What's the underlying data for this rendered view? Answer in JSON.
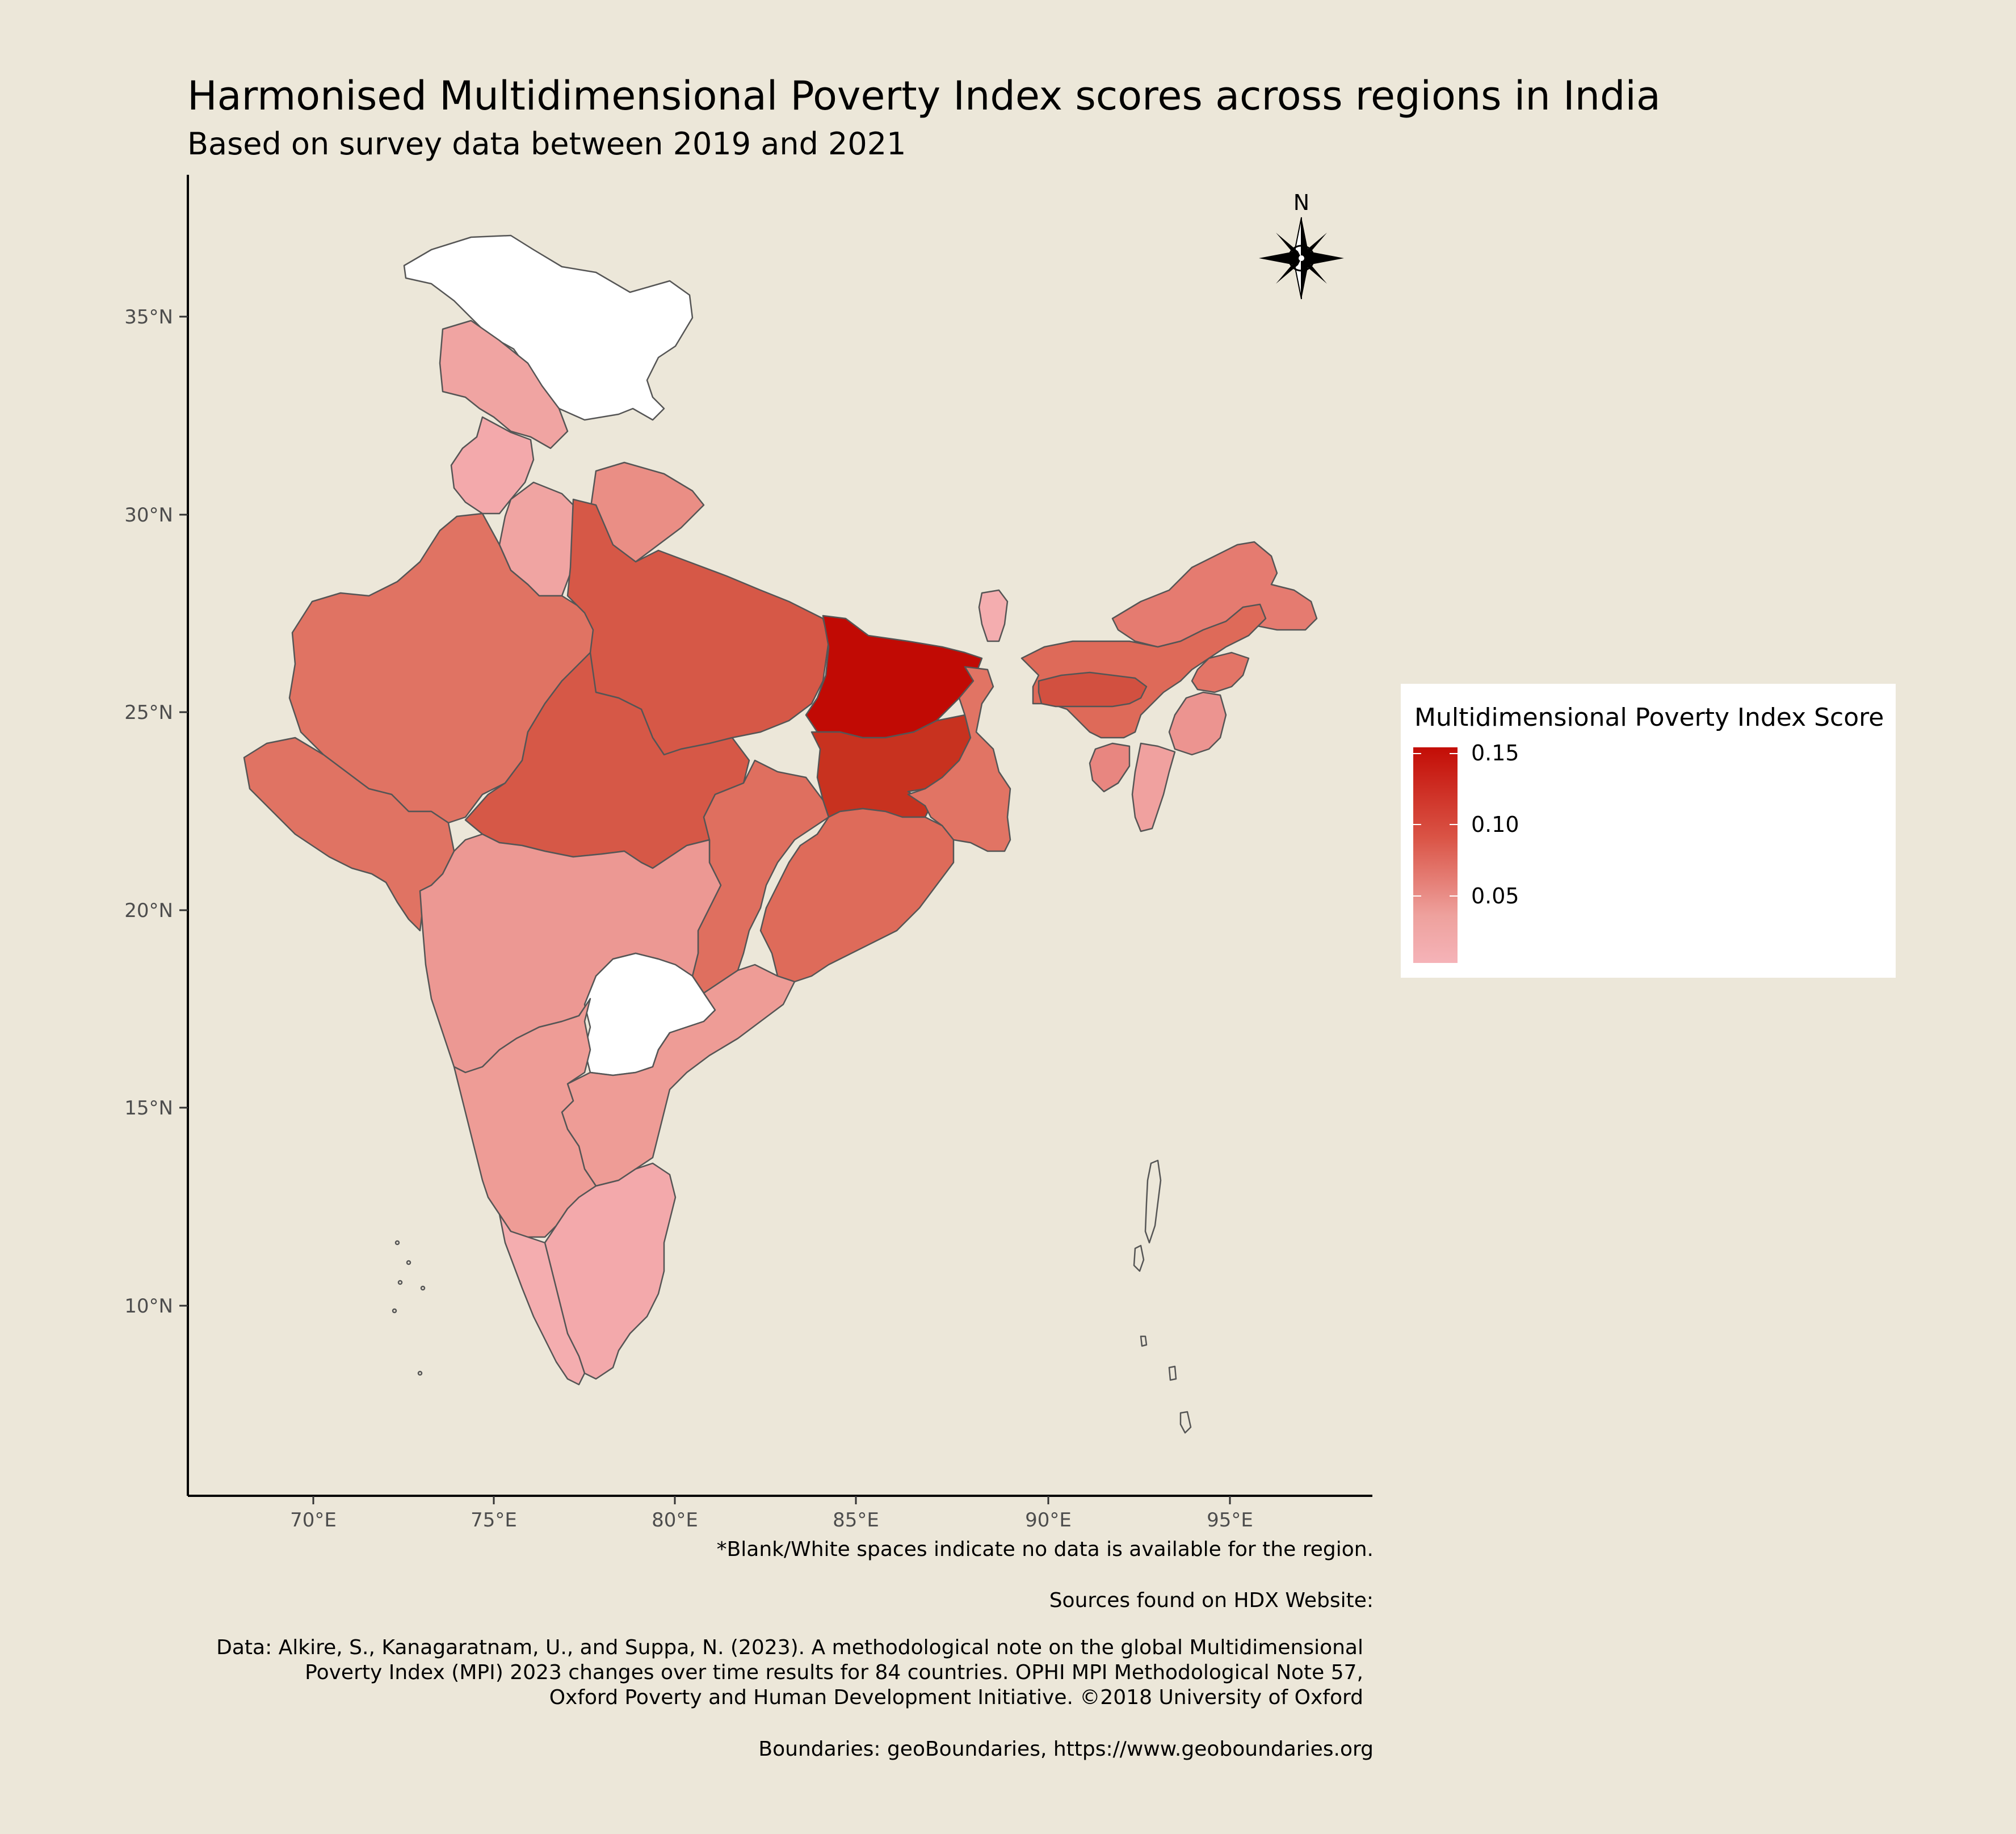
{
  "title": "Harmonised Multidimensional Poverty Index scores across regions in India",
  "subtitle": "Based on survey data between 2019 and 2021",
  "compass": {
    "label": "N",
    "icon": "compass-rose-icon"
  },
  "axes": {
    "x_ticks": [
      "70°E",
      "75°E",
      "80°E",
      "85°E",
      "90°E",
      "95°E"
    ],
    "y_ticks": [
      "35°N",
      "30°N",
      "25°N",
      "20°N",
      "15°N",
      "10°N"
    ]
  },
  "legend": {
    "title": "Multidimensional Poverty Index Score",
    "labels": [
      "0.15",
      "0.10",
      "0.05"
    ],
    "colors": [
      "#c30d06",
      "#da5446",
      "#eea19d",
      "#f5b3b8"
    ]
  },
  "regions": [
    {
      "name": "Jammu and Kashmir",
      "fill": "#ffffff",
      "no_data": true
    },
    {
      "name": "Telangana",
      "fill": "#ffffff",
      "no_data": true
    },
    {
      "name": "Bihar",
      "fill": "#c10a04"
    },
    {
      "name": "Jharkhand",
      "fill": "#c8321f"
    },
    {
      "name": "Uttar Pradesh",
      "fill": "#d65847"
    },
    {
      "name": "Madhya Pradesh",
      "fill": "#d65847"
    },
    {
      "name": "Meghalaya",
      "fill": "#d25040"
    },
    {
      "name": "Rajasthan",
      "fill": "#e07363"
    },
    {
      "name": "Gujarat",
      "fill": "#e07363"
    },
    {
      "name": "Odisha",
      "fill": "#de6b5a"
    },
    {
      "name": "Chhattisgarh",
      "fill": "#df6f5f"
    },
    {
      "name": "Assam",
      "fill": "#de6a59"
    },
    {
      "name": "Arunachal Pradesh",
      "fill": "#e57b70"
    },
    {
      "name": "West Bengal",
      "fill": "#e17464"
    },
    {
      "name": "Maharashtra",
      "fill": "#ec9893"
    },
    {
      "name": "Karnataka",
      "fill": "#ee9c96"
    },
    {
      "name": "Andhra Pradesh",
      "fill": "#ee9c96"
    },
    {
      "name": "Uttarakhand",
      "fill": "#ea8e85"
    },
    {
      "name": "Himachal Pradesh",
      "fill": "#f0a4a2"
    },
    {
      "name": "Punjab",
      "fill": "#f3a9ab"
    },
    {
      "name": "Haryana",
      "fill": "#f0a4a2"
    },
    {
      "name": "Tamil Nadu",
      "fill": "#f3a9ab"
    },
    {
      "name": "Kerala",
      "fill": "#f4adaf"
    },
    {
      "name": "Sikkim",
      "fill": "#f4adaf"
    },
    {
      "name": "Mizoram",
      "fill": "#f0a19f"
    },
    {
      "name": "Manipur",
      "fill": "#ec9490"
    },
    {
      "name": "Nagaland",
      "fill": "#e37567"
    },
    {
      "name": "Tripura",
      "fill": "#e88680"
    },
    {
      "name": "Andaman and Nicobar Islands",
      "fill": "#ece7d9"
    }
  ],
  "notes": {
    "blank_note": "*Blank/White spaces indicate no data is available for the region.",
    "sources": "Sources found on HDX Website:",
    "citation_lines": [
      "Data: Alkire, S., Kanagaratnam, U., and Suppa, N. (2023). A methodological note on the global Multidimensional",
      "Poverty Index (MPI) 2023 changes over time results for 84 countries. OPHI MPI Methodological Note 57,",
      "Oxford Poverty and Human Development Initiative. ©2018 University of Oxford"
    ],
    "boundaries": "Boundaries: geoBoundaries, https://www.geoboundaries.org"
  }
}
